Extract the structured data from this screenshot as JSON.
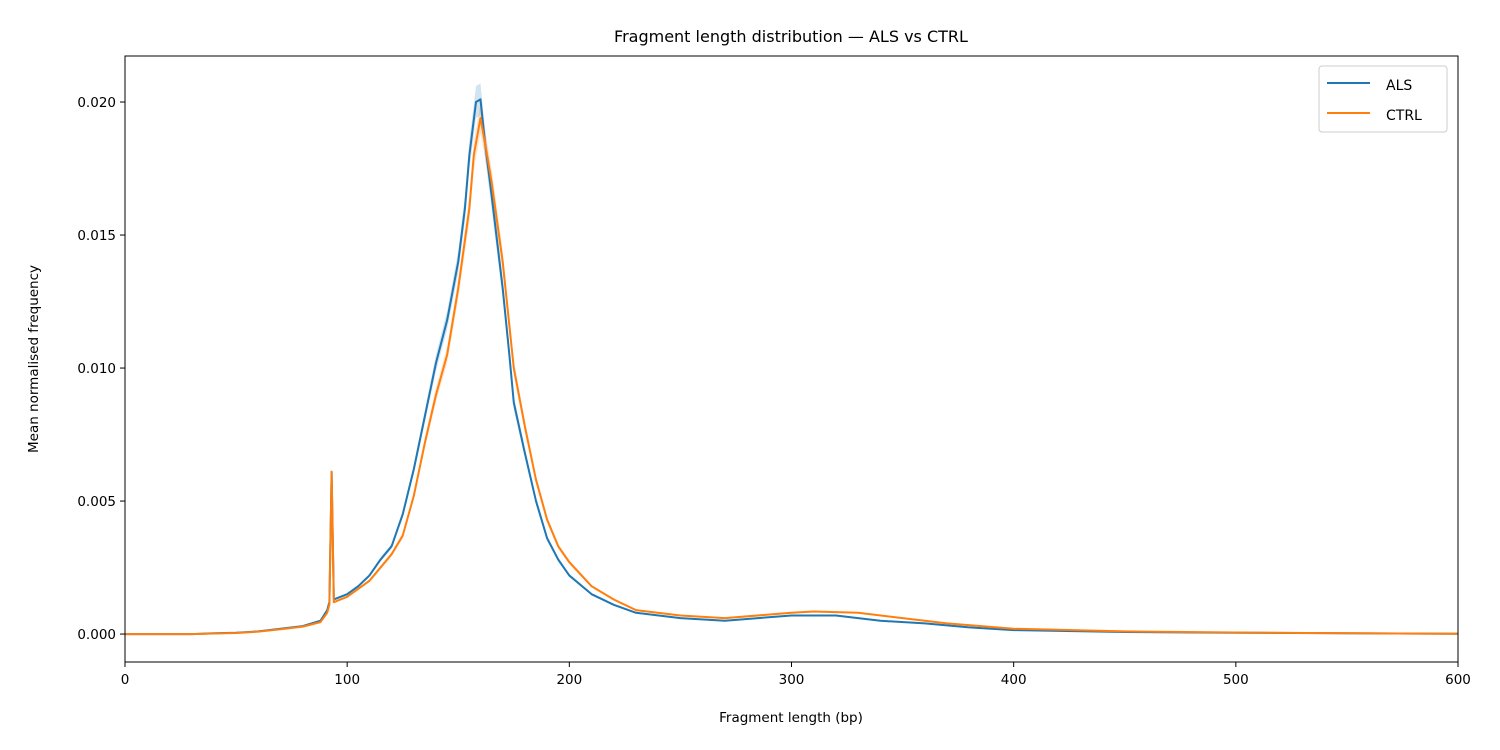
{
  "chart_data": {
    "type": "line",
    "title": "Fragment length distribution — ALS vs CTRL",
    "xlabel": "Fragment length (bp)",
    "ylabel": "Mean normalised frequency",
    "xlim": [
      0,
      600
    ],
    "ylim": [
      -0.00105,
      0.02173
    ],
    "xticks": [
      0,
      100,
      200,
      300,
      400,
      500,
      600
    ],
    "xtick_labels": [
      "0",
      "100",
      "200",
      "300",
      "400",
      "500",
      "600"
    ],
    "yticks": [
      0,
      0.005,
      0.01,
      0.015,
      0.02
    ],
    "ytick_labels": [
      "0.000",
      "0.005",
      "0.010",
      "0.015",
      "0.020"
    ],
    "grid": false,
    "legend": {
      "placement": "top-right",
      "entries": [
        "ALS",
        "CTRL"
      ]
    },
    "series": [
      {
        "name": "ALS",
        "color": "#1f77b4",
        "x": [
          0,
          30,
          40,
          50,
          60,
          70,
          80,
          88,
          91,
          92,
          93,
          94,
          100,
          105,
          110,
          115,
          120,
          125,
          130,
          135,
          140,
          145,
          150,
          153,
          155,
          158,
          160,
          162,
          165,
          170,
          173,
          175,
          180,
          185,
          190,
          195,
          200,
          210,
          220,
          230,
          250,
          270,
          300,
          320,
          340,
          360,
          380,
          400,
          450,
          500,
          550,
          600
        ],
        "y": [
          0,
          0,
          3e-05,
          5e-05,
          0.0001,
          0.0002,
          0.0003,
          0.0005,
          0.0009,
          0.0012,
          0.0061,
          0.0013,
          0.0015,
          0.0018,
          0.0022,
          0.0028,
          0.0033,
          0.0045,
          0.0062,
          0.0082,
          0.0102,
          0.0118,
          0.014,
          0.016,
          0.018,
          0.02,
          0.0201,
          0.0185,
          0.0165,
          0.013,
          0.0105,
          0.0087,
          0.0068,
          0.005,
          0.0036,
          0.0028,
          0.0022,
          0.0015,
          0.0011,
          0.0008,
          0.0006,
          0.0005,
          0.0007,
          0.0007,
          0.0005,
          0.0004,
          0.00025,
          0.00015,
          8e-05,
          5e-05,
          3e-05,
          1e-05
        ]
      },
      {
        "name": "CTRL",
        "color": "#ff7f0e",
        "x": [
          0,
          30,
          40,
          50,
          60,
          70,
          80,
          88,
          91,
          92,
          93,
          94,
          100,
          105,
          110,
          115,
          120,
          125,
          130,
          135,
          140,
          145,
          150,
          155,
          157,
          160,
          163,
          165,
          170,
          175,
          180,
          185,
          190,
          195,
          200,
          210,
          220,
          230,
          250,
          270,
          300,
          310,
          330,
          350,
          370,
          400,
          450,
          500,
          550,
          600
        ],
        "y": [
          0,
          0,
          2e-05,
          4e-05,
          9e-05,
          0.00018,
          0.00028,
          0.00045,
          0.0008,
          0.0011,
          0.0061,
          0.0012,
          0.0014,
          0.0017,
          0.002,
          0.0025,
          0.003,
          0.0037,
          0.0052,
          0.0072,
          0.009,
          0.0105,
          0.013,
          0.016,
          0.018,
          0.0194,
          0.018,
          0.017,
          0.014,
          0.01,
          0.0078,
          0.0058,
          0.0043,
          0.0033,
          0.0027,
          0.0018,
          0.0013,
          0.0009,
          0.0007,
          0.0006,
          0.0008,
          0.00085,
          0.0008,
          0.0006,
          0.0004,
          0.0002,
          0.0001,
          6e-05,
          3e-05,
          1e-05
        ]
      }
    ]
  }
}
